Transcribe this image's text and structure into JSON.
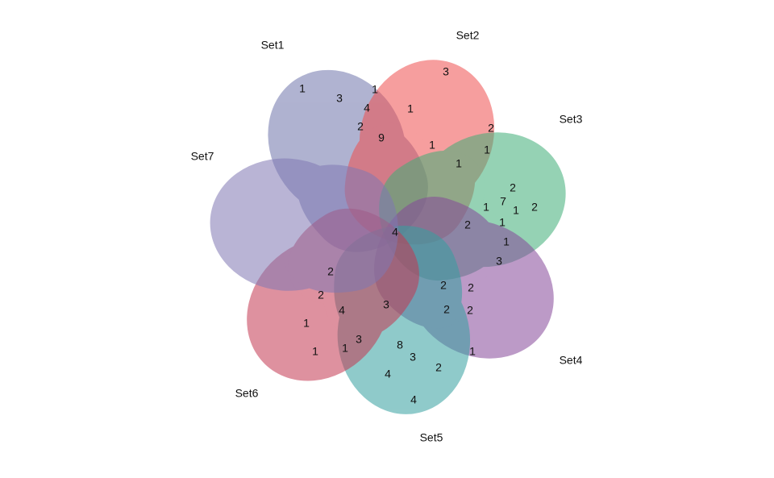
{
  "sets": [
    {
      "name": "Set1",
      "color": "#6f74ab"
    },
    {
      "name": "Set2",
      "color": "#ef4f4f"
    },
    {
      "name": "Set3",
      "color": "#3fae77"
    },
    {
      "name": "Set4",
      "color": "#86489a"
    },
    {
      "name": "Set5",
      "color": "#35a0a0"
    },
    {
      "name": "Set6",
      "color": "#c43851"
    },
    {
      "name": "Set7",
      "color": "#8078b4"
    }
  ],
  "regions": [
    1,
    3,
    1,
    3,
    4,
    1,
    2,
    9,
    2,
    1,
    1,
    1,
    2,
    7,
    1,
    1,
    2,
    1,
    2,
    4,
    1,
    3,
    2,
    2,
    2,
    2,
    3,
    4,
    2,
    2,
    1,
    3,
    8,
    1,
    1,
    3,
    1,
    2,
    4,
    4
  ]
}
